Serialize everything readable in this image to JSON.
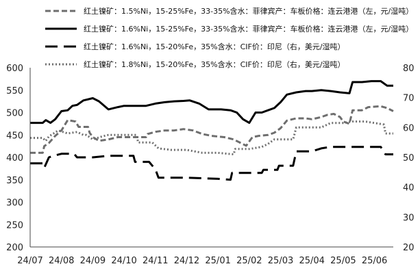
{
  "chart_data": {
    "type": "line",
    "grid": false,
    "legend_position": "top",
    "x_tick_labels": [
      "24/07",
      "24/08",
      "24/09",
      "24/10",
      "24/11",
      "24/12",
      "25/01",
      "25/02",
      "25/03",
      "25/04",
      "25/05",
      "25/06"
    ],
    "x_range": [
      0,
      11.6
    ],
    "y_left": {
      "range": [
        200,
        600
      ],
      "ticks": [
        200,
        250,
        300,
        350,
        400,
        450,
        500,
        550,
        600
      ]
    },
    "y_right": {
      "range": [
        20,
        80
      ],
      "ticks": [
        20,
        30,
        40,
        50,
        60,
        70,
        80
      ]
    },
    "series": [
      {
        "name": "红土镍矿：1.5%Ni，15-25%Fe，33-35%含水：菲律宾产：车板价格：连云港港（左，元/湿吨）",
        "axis": "left",
        "color": "#6e6e6e",
        "style": "dashed",
        "width": 3,
        "points": [
          [
            0,
            410
          ],
          [
            0.4,
            410
          ],
          [
            0.45,
            425
          ],
          [
            0.6,
            432
          ],
          [
            0.8,
            448
          ],
          [
            1.0,
            460
          ],
          [
            1.2,
            483
          ],
          [
            1.45,
            480
          ],
          [
            1.55,
            468
          ],
          [
            1.85,
            468
          ],
          [
            1.9,
            455
          ],
          [
            2.0,
            445
          ],
          [
            2.2,
            437
          ],
          [
            2.5,
            440
          ],
          [
            2.8,
            445
          ],
          [
            3.0,
            445
          ],
          [
            3.4,
            445
          ],
          [
            3.7,
            445
          ],
          [
            3.75,
            452
          ],
          [
            4.0,
            457
          ],
          [
            4.3,
            460
          ],
          [
            4.6,
            460
          ],
          [
            4.9,
            463
          ],
          [
            5.2,
            460
          ],
          [
            5.5,
            452
          ],
          [
            5.8,
            448
          ],
          [
            6.2,
            445
          ],
          [
            6.5,
            440
          ],
          [
            6.9,
            426
          ],
          [
            7.1,
            445
          ],
          [
            7.3,
            448
          ],
          [
            7.6,
            450
          ],
          [
            7.8,
            455
          ],
          [
            8.0,
            465
          ],
          [
            8.2,
            482
          ],
          [
            8.5,
            487
          ],
          [
            8.8,
            487
          ],
          [
            9.0,
            485
          ],
          [
            9.3,
            490
          ],
          [
            9.5,
            495
          ],
          [
            9.7,
            497
          ],
          [
            9.9,
            490
          ],
          [
            10.0,
            480
          ],
          [
            10.2,
            475
          ],
          [
            10.3,
            505
          ],
          [
            10.6,
            505
          ],
          [
            10.8,
            512
          ],
          [
            11.2,
            514
          ],
          [
            11.4,
            510
          ],
          [
            11.6,
            503
          ]
        ]
      },
      {
        "name": "红土镍矿：1.6%Ni，15-25%Fe，33-35%含水：菲律宾产：车板价格：连云港港（左，元/湿吨）",
        "axis": "left",
        "color": "#000000",
        "style": "solid",
        "width": 3,
        "points": [
          [
            0,
            477
          ],
          [
            0.4,
            477
          ],
          [
            0.5,
            483
          ],
          [
            0.65,
            477
          ],
          [
            0.8,
            485
          ],
          [
            1.0,
            503
          ],
          [
            1.2,
            505
          ],
          [
            1.35,
            515
          ],
          [
            1.5,
            517
          ],
          [
            1.7,
            527
          ],
          [
            2.0,
            532
          ],
          [
            2.2,
            525
          ],
          [
            2.5,
            507
          ],
          [
            2.8,
            512
          ],
          [
            3.0,
            515
          ],
          [
            3.3,
            515
          ],
          [
            3.7,
            515
          ],
          [
            4.0,
            520
          ],
          [
            4.3,
            523
          ],
          [
            4.6,
            525
          ],
          [
            4.9,
            526
          ],
          [
            5.1,
            527
          ],
          [
            5.4,
            520
          ],
          [
            5.7,
            507
          ],
          [
            6.1,
            507
          ],
          [
            6.4,
            505
          ],
          [
            6.6,
            500
          ],
          [
            6.8,
            485
          ],
          [
            7.0,
            477
          ],
          [
            7.2,
            500
          ],
          [
            7.4,
            500
          ],
          [
            7.6,
            505
          ],
          [
            7.8,
            510
          ],
          [
            8.0,
            523
          ],
          [
            8.2,
            540
          ],
          [
            8.5,
            545
          ],
          [
            8.8,
            548
          ],
          [
            9.0,
            548
          ],
          [
            9.3,
            550
          ],
          [
            9.6,
            548
          ],
          [
            9.9,
            545
          ],
          [
            10.2,
            543
          ],
          [
            10.3,
            568
          ],
          [
            10.6,
            568
          ],
          [
            10.9,
            570
          ],
          [
            11.2,
            570
          ],
          [
            11.4,
            560
          ],
          [
            11.6,
            560
          ]
        ]
      },
      {
        "name": "红土镍矿：1.6%Ni，15-20%Fe，35%含水：CIF价：印尼（右，美元/湿吨）",
        "axis": "right",
        "color": "#000000",
        "style": "longdash",
        "width": 3,
        "points": [
          [
            0,
            48
          ],
          [
            0.4,
            48
          ],
          [
            0.45,
            46.5
          ],
          [
            0.6,
            50
          ],
          [
            0.75,
            50.5
          ],
          [
            1.0,
            51.2
          ],
          [
            1.4,
            51.2
          ],
          [
            1.5,
            50
          ],
          [
            2.0,
            50
          ],
          [
            2.5,
            50.5
          ],
          [
            3.0,
            50.5
          ],
          [
            3.3,
            50.5
          ],
          [
            3.35,
            48.5
          ],
          [
            3.8,
            48.5
          ],
          [
            4.0,
            46
          ],
          [
            4.1,
            43.2
          ],
          [
            4.5,
            43.2
          ],
          [
            5.0,
            43.2
          ],
          [
            5.5,
            43
          ],
          [
            6.0,
            42.8
          ],
          [
            6.4,
            42.5
          ],
          [
            6.45,
            44.8
          ],
          [
            7.0,
            44.8
          ],
          [
            7.4,
            44.8
          ],
          [
            7.45,
            45.8
          ],
          [
            7.9,
            45.8
          ],
          [
            7.95,
            47.2
          ],
          [
            8.4,
            47.2
          ],
          [
            8.5,
            52
          ],
          [
            9.0,
            52
          ],
          [
            9.3,
            53
          ],
          [
            9.6,
            53.5
          ],
          [
            10.0,
            53.5
          ],
          [
            10.4,
            53.5
          ],
          [
            10.8,
            53.5
          ],
          [
            11.2,
            53.5
          ],
          [
            11.35,
            51
          ],
          [
            11.6,
            51
          ]
        ]
      },
      {
        "name": "红土镍矿：1.8%Ni，15-20%Fe，35%含水：CIF价：印尼（右，美元/湿吨）",
        "axis": "right",
        "color": "#6e6e6e",
        "style": "dotted",
        "width": 3,
        "points": [
          [
            0,
            56.5
          ],
          [
            0.4,
            56.5
          ],
          [
            0.5,
            55.5
          ],
          [
            0.6,
            57
          ],
          [
            0.9,
            59
          ],
          [
            1.2,
            58
          ],
          [
            1.5,
            58.5
          ],
          [
            1.7,
            57.5
          ],
          [
            1.8,
            57.5
          ],
          [
            2.0,
            56
          ],
          [
            2.3,
            57
          ],
          [
            2.5,
            57.5
          ],
          [
            3.0,
            57.5
          ],
          [
            3.4,
            57.5
          ],
          [
            3.45,
            55
          ],
          [
            3.9,
            55
          ],
          [
            4.1,
            53
          ],
          [
            4.5,
            52.5
          ],
          [
            5.0,
            52.5
          ],
          [
            5.5,
            51.5
          ],
          [
            6.0,
            51.5
          ],
          [
            6.5,
            51
          ],
          [
            6.55,
            52.8
          ],
          [
            7.0,
            52.8
          ],
          [
            7.4,
            53.5
          ],
          [
            7.6,
            54.5
          ],
          [
            7.8,
            56
          ],
          [
            8.0,
            56
          ],
          [
            8.4,
            56
          ],
          [
            8.5,
            60
          ],
          [
            9.0,
            60
          ],
          [
            9.3,
            60
          ],
          [
            9.6,
            61.5
          ],
          [
            10.0,
            61.5
          ],
          [
            10.3,
            62
          ],
          [
            10.7,
            62
          ],
          [
            11.0,
            61.5
          ],
          [
            11.3,
            61
          ],
          [
            11.35,
            58
          ],
          [
            11.6,
            58
          ]
        ]
      }
    ]
  }
}
